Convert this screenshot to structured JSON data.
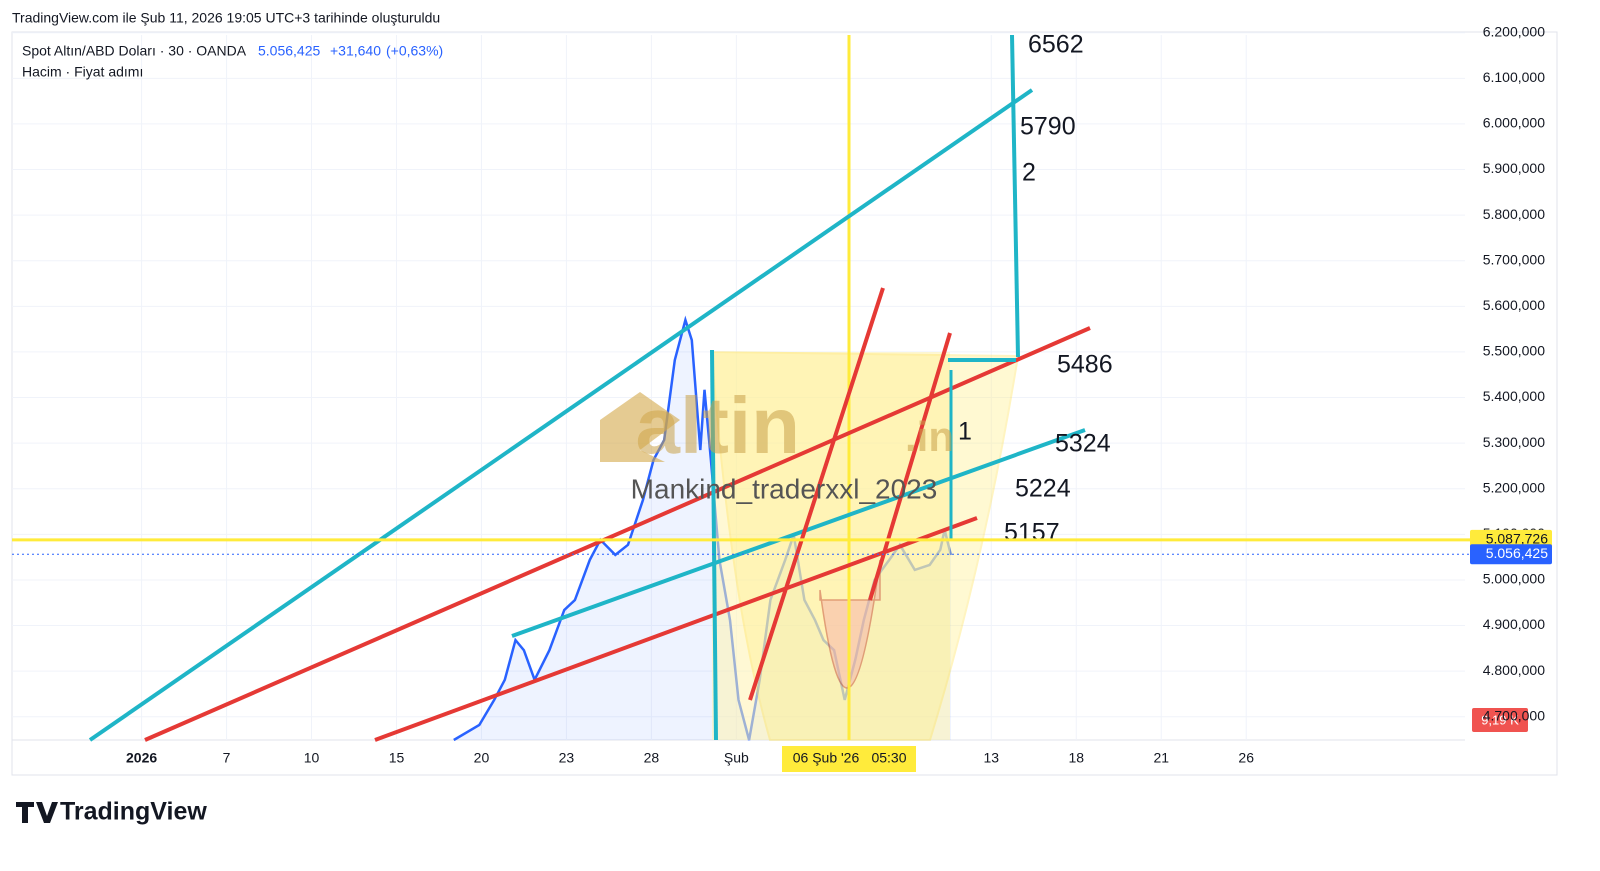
{
  "header": {
    "created": "TradingView.com ile Şub 11, 2026 19:05 UTC+3 tarihinde oluşturuldu",
    "symbol": "Spot Altın/ABD Doları · 30 · OANDA",
    "price": "5.056,425",
    "change": "+31,640",
    "change_pct": "(+0,63%)",
    "indicators": "Hacim · Fiyat adımı"
  },
  "chart_data": {
    "type": "line",
    "grid": true,
    "xlim": [
      -6.1,
      62.3
    ],
    "ylim": [
      4649,
      6195
    ],
    "xticks": [
      {
        "value": 0,
        "label": "2026"
      },
      {
        "value": 4,
        "label": "7"
      },
      {
        "value": 8,
        "label": "10"
      },
      {
        "value": 12,
        "label": "15"
      },
      {
        "value": 16,
        "label": "20"
      },
      {
        "value": 20,
        "label": "23"
      },
      {
        "value": 24,
        "label": "28"
      },
      {
        "value": 28,
        "label": "Şub"
      },
      {
        "value": 40,
        "label": "13"
      },
      {
        "value": 44,
        "label": "18"
      },
      {
        "value": 48,
        "label": "21"
      },
      {
        "value": 52,
        "label": "26"
      }
    ],
    "yticks": [
      {
        "value": 4700,
        "label": "4.700,000"
      },
      {
        "value": 4800,
        "label": "4.800,000"
      },
      {
        "value": 4900,
        "label": "4.900,000"
      },
      {
        "value": 5000,
        "label": "5.000,000"
      },
      {
        "value": 5100,
        "label": "5.100,000"
      },
      {
        "value": 5200,
        "label": "5.200,000"
      },
      {
        "value": 5300,
        "label": "5.300,000"
      },
      {
        "value": 5400,
        "label": "5.400,000"
      },
      {
        "value": 5500,
        "label": "5.500,000"
      },
      {
        "value": 5600,
        "label": "5.600,000"
      },
      {
        "value": 5700,
        "label": "5.700,000"
      },
      {
        "value": 5800,
        "label": "5.800,000"
      },
      {
        "value": 5900,
        "label": "5.900,000"
      },
      {
        "value": 6000,
        "label": "6.000,000"
      },
      {
        "value": 6100,
        "label": "6.100,000"
      },
      {
        "value": 6200,
        "label": "6.200,000"
      }
    ],
    "x": [
      14.7,
      15.9,
      16.6,
      17.1,
      17.6,
      18.0,
      18.5,
      19.2,
      19.9,
      20.4,
      21.1,
      21.6,
      22.3,
      22.9,
      23.6,
      24.1,
      24.6,
      25.1,
      25.6,
      25.9,
      26.3,
      26.5,
      26.8,
      27.2,
      27.7,
      28.1,
      28.6,
      29.1,
      29.6,
      30.3,
      30.7,
      31.2,
      31.7,
      32.1,
      32.6,
      33.1,
      33.6,
      34.0,
      34.5,
      35.2,
      35.7,
      36.4,
      37.1,
      37.6,
      37.8,
      38.1
    ],
    "series": [
      {
        "color": "#2962ff",
        "values": [
          4649,
          4682,
          4737,
          4781,
          4868,
          4846,
          4781,
          4846,
          4934,
          4956,
          5044,
          5088,
          5055,
          5077,
          5175,
          5263,
          5307,
          5482,
          5570,
          5526,
          5285,
          5417,
          5263,
          5044,
          4912,
          4737,
          4649,
          4781,
          4956,
          5044,
          5099,
          4956,
          4912,
          4868,
          4846,
          4737,
          4825,
          4912,
          5000,
          5044,
          5077,
          5022,
          5033,
          5066,
          5110,
          5055
        ]
      }
    ],
    "price_labels": [
      {
        "value": 5087.726,
        "label": "5.087,726",
        "color": "#ffeb3b"
      },
      {
        "value": 5056.425,
        "label": "5.056,425",
        "color": "#2962ff"
      }
    ],
    "volume_label": "9,19 K",
    "crosshair_label": [
      "06 Şub '26",
      "05:30"
    ],
    "annotations": [
      "6562",
      "5790",
      "2",
      "5486",
      "5324",
      "5224",
      "5157",
      "1"
    ],
    "watermark": [
      "altin",
      ".in"
    ],
    "author": "Mankind_traderxxl_2023"
  },
  "footer": {
    "brand": "TradingView"
  }
}
